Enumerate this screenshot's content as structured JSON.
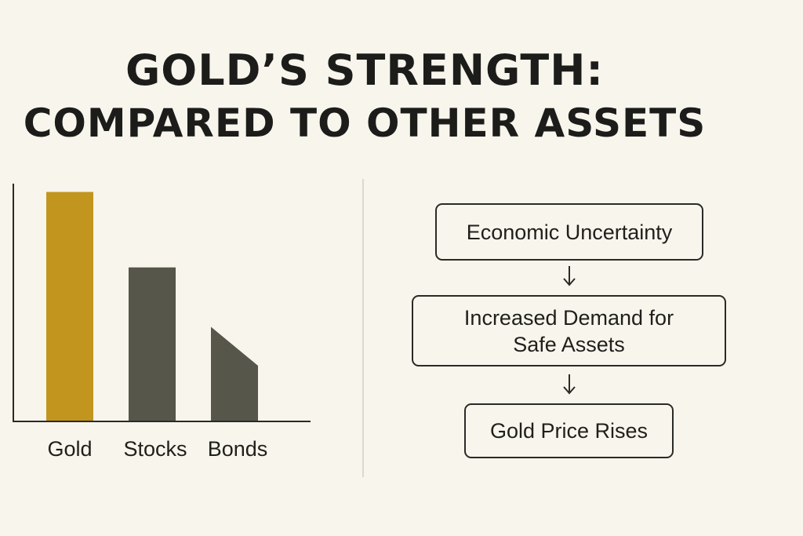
{
  "title": {
    "line1": "GOLD’S STRENGTH:",
    "line2": "COMPARED TO OTHER ASSETS"
  },
  "chart_data": {
    "type": "bar",
    "title": "GOLD’S STRENGTH: COMPARED TO OTHER ASSETS",
    "categories": [
      "Gold",
      "Stocks",
      "Bonds"
    ],
    "values": [
      100,
      67,
      41
    ],
    "bonds_slanted_top": {
      "left_value": 41,
      "right_value": 24
    },
    "value_scale": "relative (no axis ticks shown)",
    "ylim": [
      0,
      105
    ],
    "xlabel": "",
    "ylabel": "",
    "grid": false,
    "colors": {
      "Gold": "#c2951f",
      "Stocks": "#57564a",
      "Bonds": "#57564a"
    }
  },
  "flow": {
    "steps": [
      {
        "label": "Economic Uncertainty"
      },
      {
        "label": "Increased Demand for Safe Assets"
      },
      {
        "label": "Gold Price Rises"
      }
    ],
    "arrow_icon": "down-arrow-icon"
  },
  "colors": {
    "background": "#f8f5ec",
    "text": "#1f1f1c",
    "gold": "#c2951f",
    "dark_gray": "#57564a",
    "divider": "#dcd8cc"
  }
}
